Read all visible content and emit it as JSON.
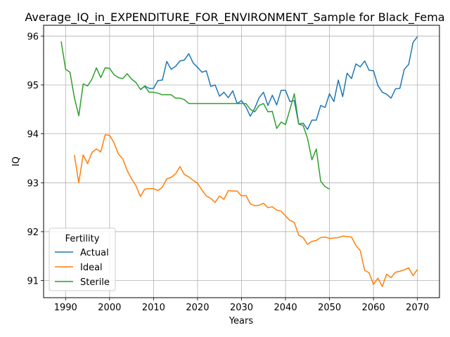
{
  "chart_data": {
    "type": "line",
    "title": "Average_IQ_in_EXPENDITURE_FOR_ENVIRONMENT_Sample for Black_Fema",
    "xlabel": "Years",
    "ylabel": "IQ",
    "xlim": [
      1985,
      2075
    ],
    "ylim": [
      90.65,
      96.22
    ],
    "xticks": [
      1990,
      2000,
      2010,
      2020,
      2030,
      2040,
      2050,
      2060,
      2070
    ],
    "yticks": [
      91,
      92,
      93,
      94,
      95,
      96
    ],
    "grid": true,
    "legend": {
      "title": "Fertility",
      "position": "lower-left"
    },
    "series": [
      {
        "name": "Actual",
        "color": "#1f77b4",
        "x": [
          2007,
          2008,
          2009,
          2010,
          2011,
          2012,
          2013,
          2014,
          2015,
          2016,
          2017,
          2018,
          2019,
          2020,
          2021,
          2022,
          2023,
          2024,
          2025,
          2026,
          2027,
          2028,
          2029,
          2030,
          2031,
          2032,
          2033,
          2034,
          2035,
          2036,
          2037,
          2038,
          2039,
          2040,
          2041,
          2042,
          2043,
          2044,
          2045,
          2046,
          2047,
          2048,
          2049,
          2050,
          2051,
          2052,
          2053,
          2054,
          2055,
          2056,
          2057,
          2058,
          2059,
          2060,
          2061,
          2062,
          2063,
          2064,
          2065,
          2066,
          2067,
          2068,
          2069,
          2070
        ],
        "values": [
          94.9,
          94.98,
          94.93,
          94.93,
          95.09,
          95.1,
          95.48,
          95.32,
          95.38,
          95.49,
          95.51,
          95.64,
          95.45,
          95.36,
          95.26,
          95.29,
          94.97,
          95.0,
          94.77,
          94.85,
          94.74,
          94.88,
          94.62,
          94.68,
          94.55,
          94.36,
          94.52,
          94.74,
          94.85,
          94.58,
          94.79,
          94.59,
          94.89,
          94.89,
          94.66,
          94.68,
          94.2,
          94.22,
          94.09,
          94.28,
          94.28,
          94.58,
          94.54,
          94.82,
          94.66,
          95.1,
          94.76,
          95.24,
          95.13,
          95.43,
          95.37,
          95.49,
          95.3,
          95.29,
          94.99,
          94.85,
          94.81,
          94.73,
          94.92,
          94.93,
          95.32,
          95.42,
          95.87,
          95.99
        ]
      },
      {
        "name": "Ideal",
        "color": "#ff7f0e",
        "x": [
          1992,
          1993,
          1994,
          1995,
          1996,
          1997,
          1998,
          1999,
          2000,
          2001,
          2002,
          2003,
          2004,
          2005,
          2006,
          2007,
          2008,
          2009,
          2010,
          2011,
          2012,
          2013,
          2014,
          2015,
          2016,
          2017,
          2018,
          2019,
          2020,
          2021,
          2022,
          2023,
          2024,
          2025,
          2026,
          2027,
          2028,
          2029,
          2030,
          2031,
          2032,
          2033,
          2034,
          2035,
          2036,
          2037,
          2038,
          2039,
          2040,
          2041,
          2042,
          2043,
          2044,
          2045,
          2046,
          2047,
          2048,
          2049,
          2050,
          2051,
          2052,
          2053,
          2054,
          2055,
          2056,
          2057,
          2058,
          2059,
          2060,
          2061,
          2062,
          2063,
          2064,
          2065,
          2066,
          2067,
          2068,
          2069,
          2070
        ],
        "values": [
          93.57,
          93.0,
          93.57,
          93.39,
          93.62,
          93.69,
          93.63,
          93.98,
          93.97,
          93.82,
          93.59,
          93.49,
          93.25,
          93.08,
          92.94,
          92.72,
          92.87,
          92.88,
          92.88,
          92.84,
          92.91,
          93.08,
          93.11,
          93.18,
          93.33,
          93.17,
          93.12,
          93.05,
          92.99,
          92.85,
          92.73,
          92.68,
          92.6,
          92.73,
          92.66,
          92.84,
          92.83,
          92.83,
          92.73,
          92.74,
          92.57,
          92.53,
          92.54,
          92.58,
          92.49,
          92.51,
          92.44,
          92.42,
          92.32,
          92.23,
          92.19,
          91.93,
          91.88,
          91.74,
          91.8,
          91.82,
          91.88,
          91.89,
          91.86,
          91.87,
          91.88,
          91.91,
          91.9,
          91.89,
          91.72,
          91.61,
          91.21,
          91.16,
          90.92,
          91.05,
          90.88,
          91.13,
          91.06,
          91.17,
          91.19,
          91.22,
          91.26,
          91.1,
          91.23
        ]
      },
      {
        "name": "Sterile",
        "color": "#2ca02c",
        "x": [
          1989,
          1990,
          1991,
          1992,
          1993,
          1994,
          1995,
          1996,
          1997,
          1998,
          1999,
          2000,
          2001,
          2002,
          2003,
          2004,
          2005,
          2006,
          2007,
          2008,
          2009,
          2010,
          2011,
          2012,
          2013,
          2014,
          2015,
          2016,
          2017,
          2018,
          2019,
          2020,
          2021,
          2022,
          2023,
          2024,
          2025,
          2026,
          2027,
          2028,
          2029,
          2030,
          2031,
          2032,
          2033,
          2034,
          2035,
          2036,
          2037,
          2038,
          2039,
          2040,
          2041,
          2042,
          2043,
          2044,
          2045,
          2046,
          2047,
          2048,
          2049,
          2050
        ],
        "values": [
          95.89,
          95.32,
          95.26,
          94.74,
          94.37,
          95.02,
          94.98,
          95.12,
          95.35,
          95.15,
          95.35,
          95.34,
          95.21,
          95.15,
          95.13,
          95.23,
          95.12,
          95.05,
          94.91,
          94.97,
          94.85,
          94.85,
          94.83,
          94.8,
          94.8,
          94.8,
          94.73,
          94.73,
          94.7,
          94.62,
          94.62,
          94.62,
          94.62,
          94.62,
          94.62,
          94.62,
          94.62,
          94.62,
          94.62,
          94.62,
          94.62,
          94.62,
          94.62,
          94.5,
          94.45,
          94.58,
          94.62,
          94.45,
          94.46,
          94.11,
          94.24,
          94.19,
          94.5,
          94.82,
          94.2,
          94.17,
          93.91,
          93.47,
          93.69,
          93.03,
          92.92,
          92.87
        ]
      }
    ]
  }
}
